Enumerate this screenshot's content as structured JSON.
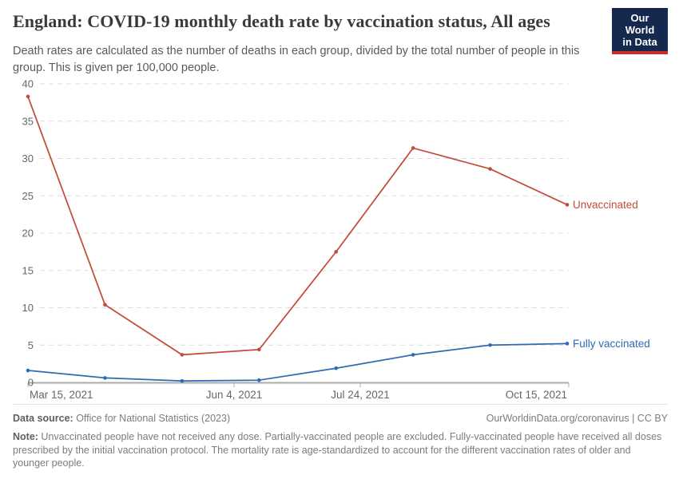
{
  "header": {
    "title": "England: COVID-19 monthly death rate by vaccination status, All ages",
    "subtitle": "Death rates are calculated as the number of deaths in each group, divided by the total number of people in this group. This is given per 100,000 people.",
    "logo": {
      "line1": "Our World",
      "line2": "in Data",
      "bg_color": "#15294e",
      "stripe_color": "#cd2d28"
    }
  },
  "chart_data": {
    "type": "line",
    "x": [
      "Mar 15, 2021",
      "Apr 15, 2021",
      "May 15, 2021",
      "Jun 15, 2021",
      "Jul 15, 2021",
      "Aug 15, 2021",
      "Sep 15, 2021",
      "Oct 15, 2021"
    ],
    "series": [
      {
        "name": "Unvaccinated",
        "color": "#c24c3b",
        "values": [
          38.3,
          10.4,
          3.7,
          4.4,
          17.5,
          31.4,
          28.6,
          23.8
        ]
      },
      {
        "name": "Fully vaccinated",
        "color": "#2d6bb2",
        "values": [
          1.6,
          0.6,
          0.2,
          0.3,
          1.9,
          3.7,
          5.0,
          5.2
        ]
      }
    ],
    "ylim": [
      0,
      40
    ],
    "yticks": [
      0,
      5,
      10,
      15,
      20,
      25,
      30,
      35,
      40
    ],
    "xtick_labels": [
      "Mar 15, 2021",
      "Jun 4, 2021",
      "Jul 24, 2021",
      "Oct 15, 2021"
    ],
    "grid": "horizontal dashed",
    "legend_position": "line-end-labels",
    "title": "England: COVID-19 monthly death rate by vaccination status, All ages",
    "xlabel": "",
    "ylabel": ""
  },
  "footer": {
    "source_label": "Data source:",
    "source_text": " Office for National Statistics (2023)",
    "rights": "OurWorldinData.org/coronavirus | CC BY",
    "note_label": "Note:",
    "note_text": " Unvaccinated people have not received any dose. Partially-vaccinated people are excluded. Fully-vaccinated people have received all doses prescribed by the initial vaccination protocol. The mortality rate is age-standardized to account for the different vaccination rates of older and younger people."
  }
}
